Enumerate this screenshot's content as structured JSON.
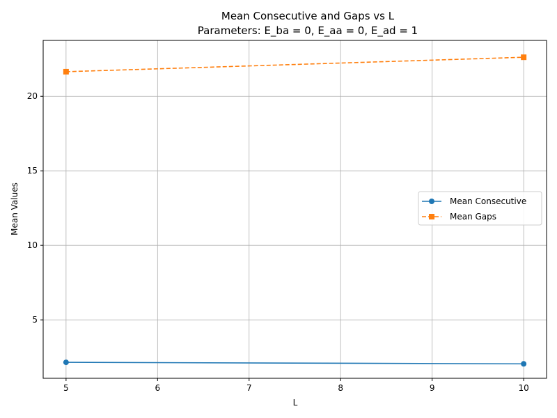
{
  "chart_data": {
    "type": "line",
    "title": "Mean Consecutive and Gaps vs L",
    "subtitle": "Parameters: E_ba = 0, E_aa = 0, E_ad = 1",
    "xlabel": "L",
    "ylabel": "Mean Values",
    "x": [
      5,
      10
    ],
    "xlim": [
      4.75,
      10.25
    ],
    "ylim": [
      1.08,
      23.75
    ],
    "xticks": [
      "5",
      "6",
      "7",
      "8",
      "9",
      "10"
    ],
    "yticks": [
      "5",
      "10",
      "15",
      "20"
    ],
    "grid": true,
    "legend_position": "center-right",
    "series": [
      {
        "name": "Mean Consecutive",
        "values": [
          2.15,
          2.05
        ],
        "color": "#1f77b4",
        "line_style": "solid",
        "marker": "circle"
      },
      {
        "name": "Mean Gaps",
        "values": [
          21.65,
          22.62
        ],
        "color": "#ff7f0e",
        "line_style": "dashed",
        "marker": "square"
      }
    ]
  }
}
